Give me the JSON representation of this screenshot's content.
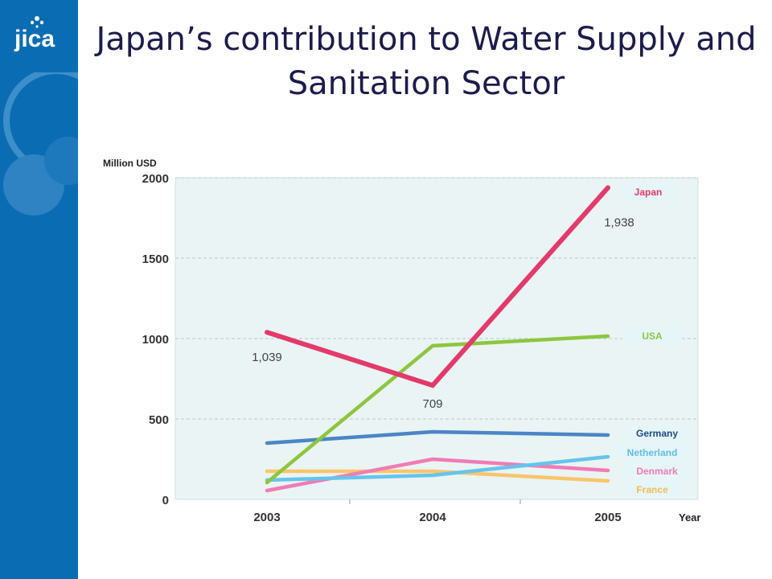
{
  "slide": {
    "title": "Japan’s contribution to Water Supply and Sanitation Sector",
    "logo_text": "JICA"
  },
  "colors": {
    "sidebar": "#0a6db3",
    "plot_bg": "#eaf4f4",
    "Japan": "#e23a6a",
    "USA": "#8cc63f",
    "Germany": "#4a86c5",
    "Netherland": "#66c4ea",
    "Denmark": "#f07cb4",
    "France": "#f9c56b"
  },
  "chart_data": {
    "type": "line",
    "title": "",
    "xlabel": "Year",
    "ylabel": "Million USD",
    "x": [
      "2003",
      "2004",
      "2005"
    ],
    "ylim": [
      0,
      2000
    ],
    "yticks": [
      "0",
      "500",
      "1000",
      "1500",
      "2000"
    ],
    "grid": true,
    "series": [
      {
        "name": "Japan",
        "values": [
          1039,
          709,
          1938
        ],
        "color": "#e23a6a"
      },
      {
        "name": "USA",
        "values": [
          105,
          955,
          1015
        ],
        "color": "#8cc63f"
      },
      {
        "name": "Germany",
        "values": [
          350,
          420,
          400
        ],
        "color": "#4a86c5"
      },
      {
        "name": "Netherland",
        "values": [
          120,
          150,
          265
        ],
        "color": "#66c4ea"
      },
      {
        "name": "Denmark",
        "values": [
          55,
          250,
          180
        ],
        "color": "#f07cb4"
      },
      {
        "name": "France",
        "values": [
          175,
          175,
          115
        ],
        "color": "#f9c56b"
      }
    ],
    "annotations": [
      {
        "text": "1,039",
        "series": "Japan",
        "index": 0
      },
      {
        "text": "709",
        "series": "Japan",
        "index": 1
      },
      {
        "text": "1,938",
        "series": "Japan",
        "index": 2
      }
    ]
  }
}
